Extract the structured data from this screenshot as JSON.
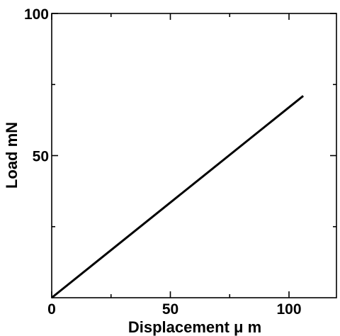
{
  "chart_data": {
    "type": "line",
    "title": "",
    "xlabel": "Displacement μ m",
    "ylabel": "Load mN",
    "xlim": [
      0,
      120
    ],
    "ylim": [
      0,
      100
    ],
    "x_ticks": [
      {
        "value": 0,
        "label": "0"
      },
      {
        "value": 50,
        "label": "50"
      },
      {
        "value": 100,
        "label": "100"
      }
    ],
    "y_ticks": [
      {
        "value": 50,
        "label": "50"
      },
      {
        "value": 100,
        "label": "100"
      }
    ],
    "x_minor_ticks": [
      25,
      75,
      125
    ],
    "y_minor_ticks": [
      25,
      75
    ],
    "grid": false,
    "legend": "none",
    "series": [
      {
        "color": "#000000",
        "x": [
          0,
          106
        ],
        "y": [
          0,
          71
        ]
      }
    ]
  }
}
